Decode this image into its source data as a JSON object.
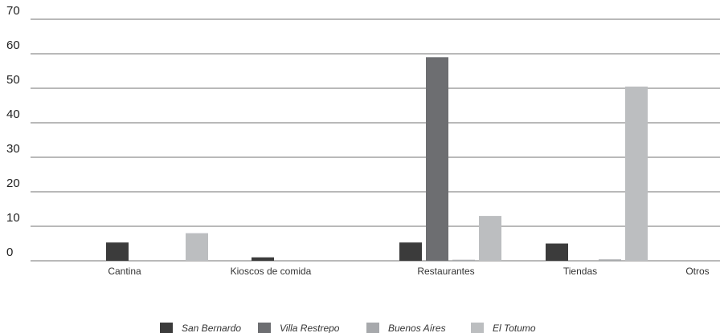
{
  "chart_data": {
    "type": "bar",
    "categories": [
      "Cantina",
      "Kioscos de comida",
      "Restaurantes",
      "Tiendas",
      "Otros"
    ],
    "series": [
      {
        "name": "San Bernardo",
        "color": "#3b3b3b",
        "values": [
          5.3,
          1.0,
          5.3,
          5.0,
          0
        ]
      },
      {
        "name": "Villa Restrepo",
        "color": "#6d6e71",
        "values": [
          0,
          0,
          59.0,
          0,
          0
        ]
      },
      {
        "name": "Buenos Aíres",
        "color": "#a7a9ac",
        "values": [
          0,
          0,
          0.3,
          0.4,
          0
        ]
      },
      {
        "name": "El Totumo",
        "color": "#bcbec0",
        "values": [
          8.0,
          0,
          13.0,
          50.5,
          0
        ]
      }
    ],
    "yticks": [
      "0",
      "10",
      "20",
      "30",
      "40",
      "50",
      "60",
      "70"
    ],
    "ylim": [
      0,
      70
    ],
    "grid": true,
    "legend_position": "bottom-center"
  }
}
